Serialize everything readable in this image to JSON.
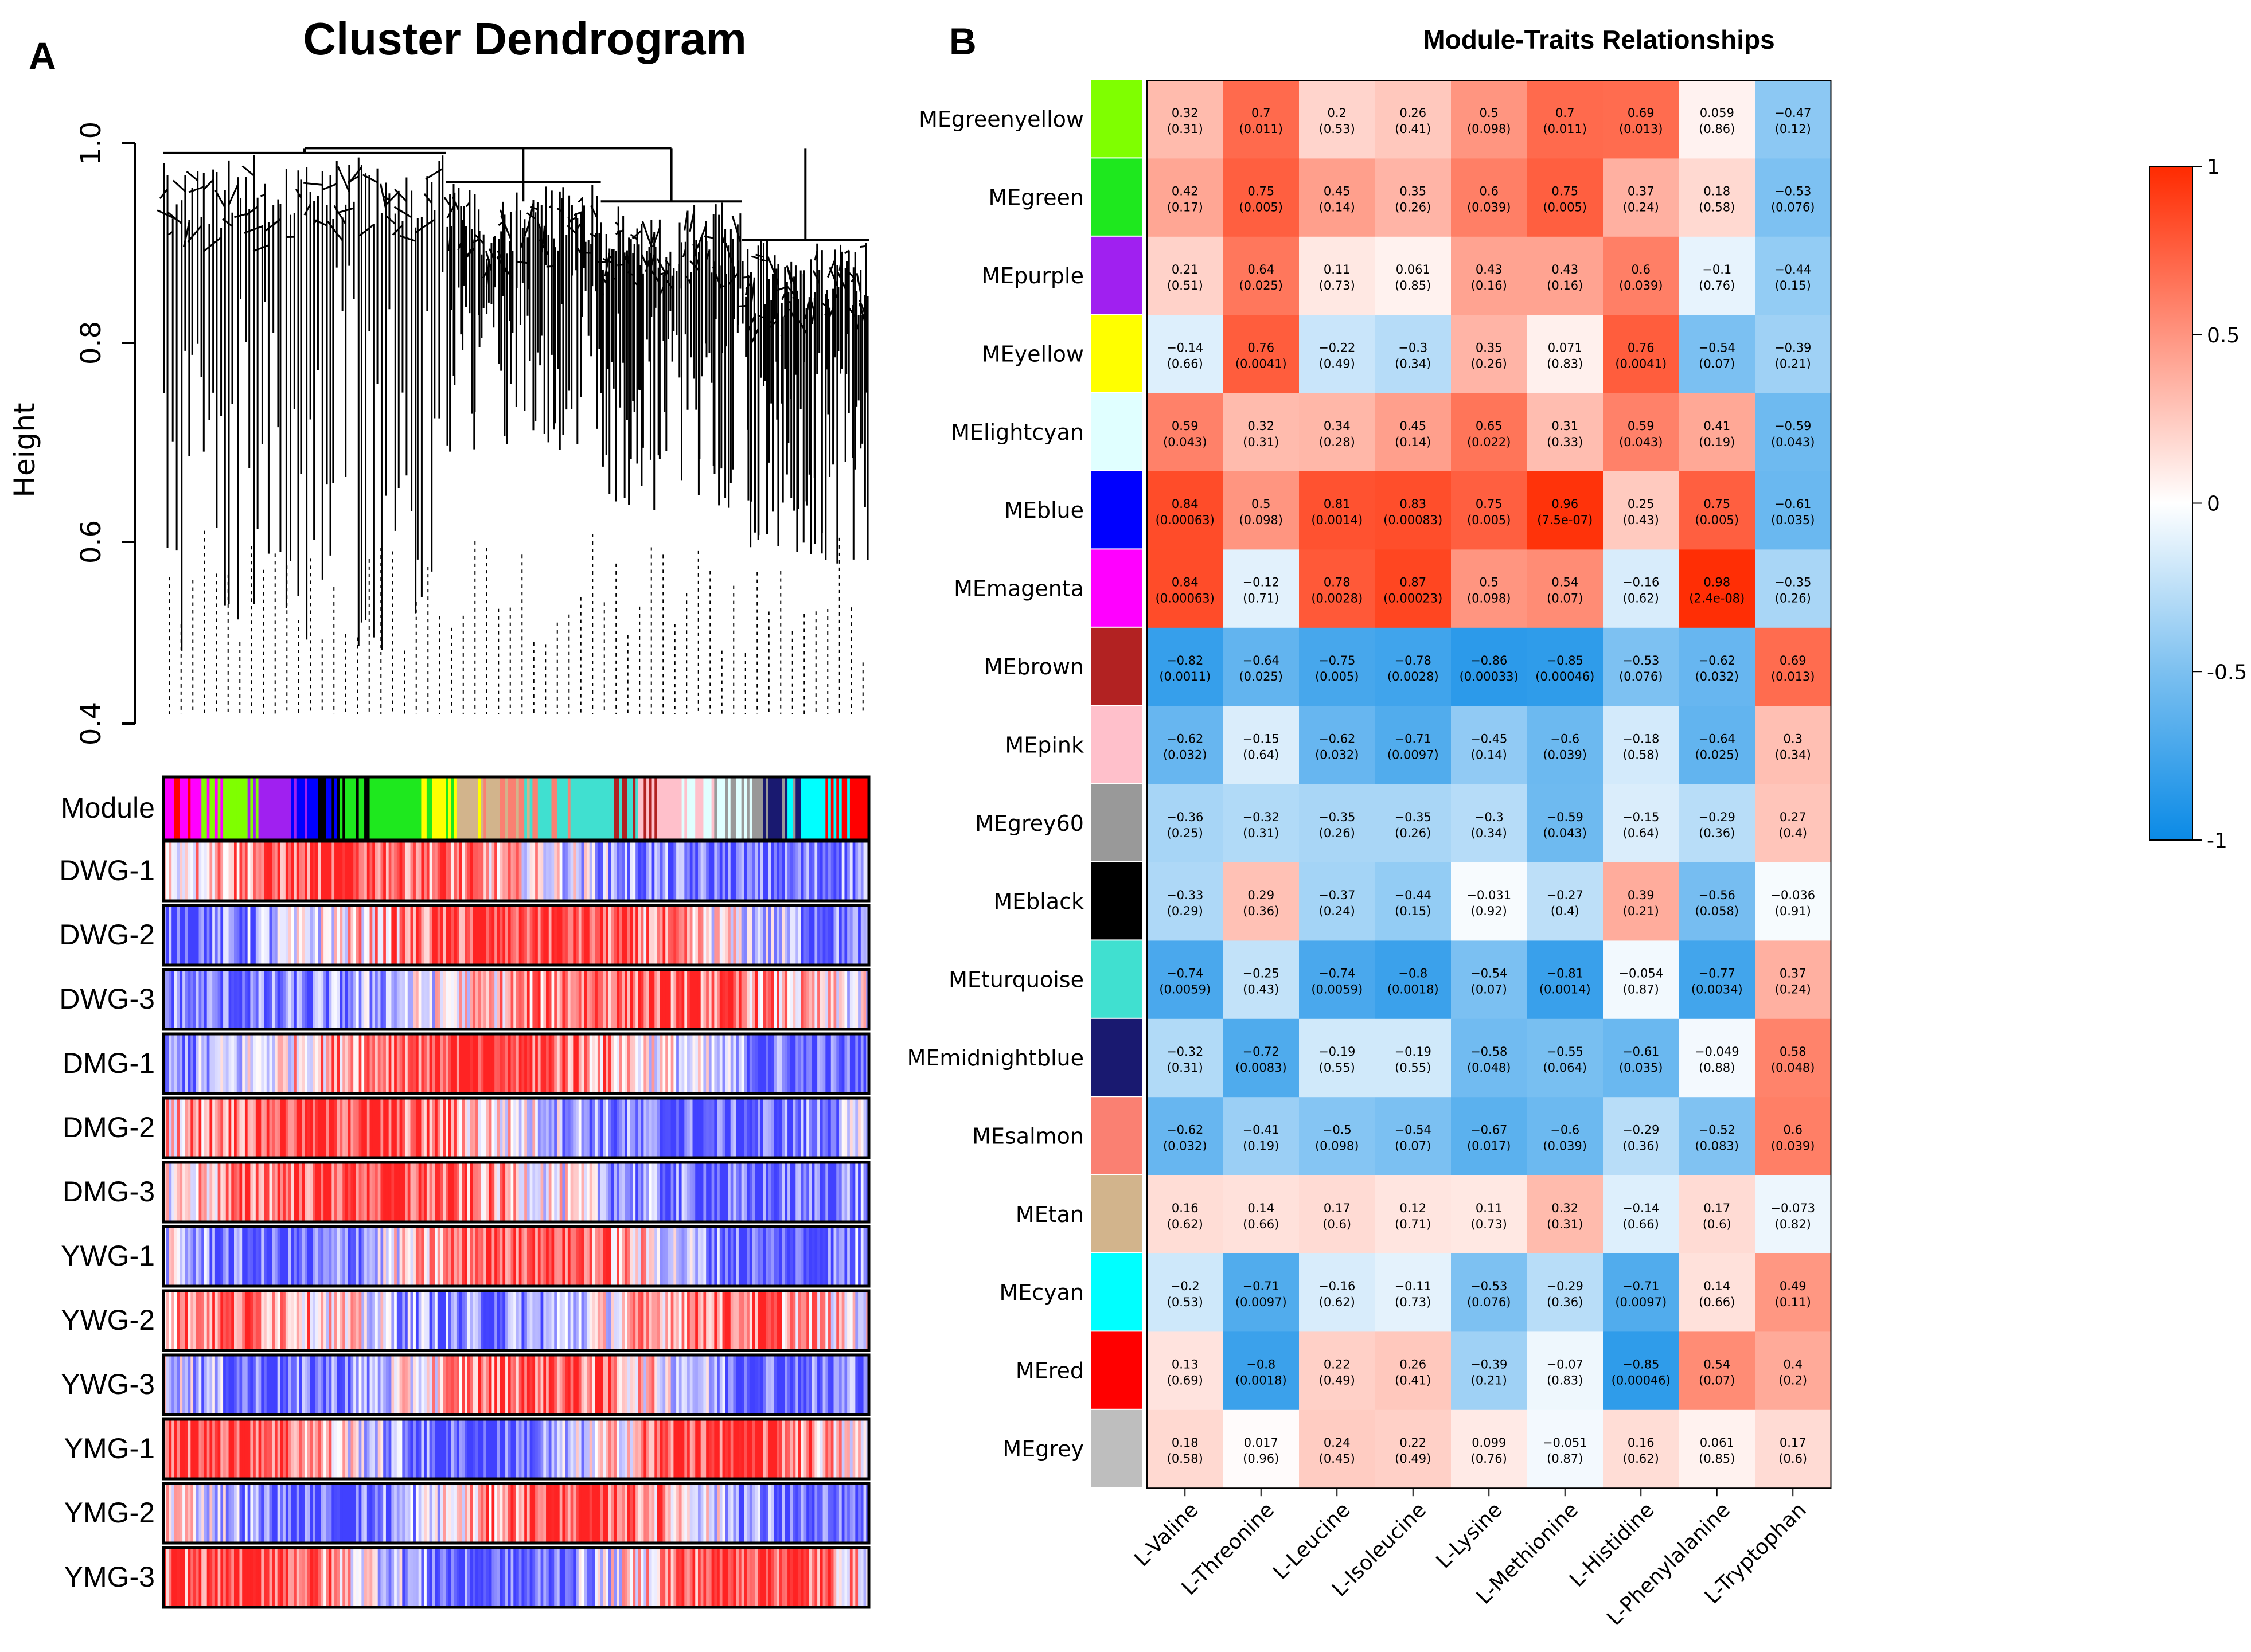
{
  "panel_a": {
    "label": "A",
    "title": "Cluster Dendrogram",
    "y_axis_label": "Height",
    "y_ticks": [
      "0.4",
      "0.6",
      "0.8",
      "1.0"
    ],
    "module_track_label": "Module",
    "samples": [
      "DWG-1",
      "DWG-2",
      "DWG-3",
      "DMG-1",
      "DMG-2",
      "DMG-3",
      "YWG-1",
      "YWG-2",
      "YWG-3",
      "YMG-1",
      "YMG-2",
      "YMG-3"
    ]
  },
  "panel_b": {
    "label": "B",
    "title": "Module-Traits Relationships",
    "colorbar_ticks": [
      "1",
      "0.5",
      "0",
      "-0.5",
      "-1"
    ],
    "colors": {
      "positive": "#ff2a00",
      "neutral": "#ffffff",
      "negative": "#0a8ae6"
    }
  },
  "chart_data": [
    {
      "type": "dendrogram",
      "title": "Cluster Dendrogram",
      "ylabel": "Height",
      "ylim": [
        0.4,
        1.0
      ],
      "tracks": [
        "Module",
        "DWG-1",
        "DWG-2",
        "DWG-3",
        "DMG-1",
        "DMG-2",
        "DMG-3",
        "YWG-1",
        "YWG-2",
        "YWG-3",
        "YMG-1",
        "YMG-2",
        "YMG-3"
      ]
    },
    {
      "type": "heatmap",
      "title": "Module-Traits Relationships",
      "columns": [
        "L-Valine",
        "L-Threonine",
        "L-Leucine",
        "L-Isoleucine",
        "L-Lysine",
        "L-Methionine",
        "L-Histidine",
        "L-Phenylalanine",
        "L-Tryptophan"
      ],
      "zlim": [
        -1,
        1
      ],
      "rows": [
        {
          "name": "MEgreenyellow",
          "color": "#7fff00",
          "values": [
            "0.32",
            "0.7",
            "0.2",
            "0.26",
            "0.5",
            "0.7",
            "0.69",
            "0.059",
            "−0.47"
          ],
          "p": [
            "(0.31)",
            "(0.011)",
            "(0.53)",
            "(0.41)",
            "(0.098)",
            "(0.011)",
            "(0.013)",
            "(0.86)",
            "(0.12)"
          ]
        },
        {
          "name": "MEgreen",
          "color": "#1ee81e",
          "values": [
            "0.42",
            "0.75",
            "0.45",
            "0.35",
            "0.6",
            "0.75",
            "0.37",
            "0.18",
            "−0.53"
          ],
          "p": [
            "(0.17)",
            "(0.005)",
            "(0.14)",
            "(0.26)",
            "(0.039)",
            "(0.005)",
            "(0.24)",
            "(0.58)",
            "(0.076)"
          ]
        },
        {
          "name": "MEpurple",
          "color": "#a020f0",
          "values": [
            "0.21",
            "0.64",
            "0.11",
            "0.061",
            "0.43",
            "0.43",
            "0.6",
            "−0.1",
            "−0.44"
          ],
          "p": [
            "(0.51)",
            "(0.025)",
            "(0.73)",
            "(0.85)",
            "(0.16)",
            "(0.16)",
            "(0.039)",
            "(0.76)",
            "(0.15)"
          ]
        },
        {
          "name": "MEyellow",
          "color": "#ffff00",
          "values": [
            "−0.14",
            "0.76",
            "−0.22",
            "−0.3",
            "0.35",
            "0.071",
            "0.76",
            "−0.54",
            "−0.39"
          ],
          "p": [
            "(0.66)",
            "(0.0041)",
            "(0.49)",
            "(0.34)",
            "(0.26)",
            "(0.83)",
            "(0.0041)",
            "(0.07)",
            "(0.21)"
          ]
        },
        {
          "name": "MElightcyan",
          "color": "#e0ffff",
          "values": [
            "0.59",
            "0.32",
            "0.34",
            "0.45",
            "0.65",
            "0.31",
            "0.59",
            "0.41",
            "−0.59"
          ],
          "p": [
            "(0.043)",
            "(0.31)",
            "(0.28)",
            "(0.14)",
            "(0.022)",
            "(0.33)",
            "(0.043)",
            "(0.19)",
            "(0.043)"
          ]
        },
        {
          "name": "MEblue",
          "color": "#0000ff",
          "values": [
            "0.84",
            "0.5",
            "0.81",
            "0.83",
            "0.75",
            "0.96",
            "0.25",
            "0.75",
            "−0.61"
          ],
          "p": [
            "(0.00063)",
            "(0.098)",
            "(0.0014)",
            "(0.00083)",
            "(0.005)",
            "(7.5e-07)",
            "(0.43)",
            "(0.005)",
            "(0.035)"
          ]
        },
        {
          "name": "MEmagenta",
          "color": "#ff00ff",
          "values": [
            "0.84",
            "−0.12",
            "0.78",
            "0.87",
            "0.5",
            "0.54",
            "−0.16",
            "0.98",
            "−0.35"
          ],
          "p": [
            "(0.00063)",
            "(0.71)",
            "(0.0028)",
            "(0.00023)",
            "(0.098)",
            "(0.07)",
            "(0.62)",
            "(2.4e-08)",
            "(0.26)"
          ]
        },
        {
          "name": "MEbrown",
          "color": "#b22222",
          "values": [
            "−0.82",
            "−0.64",
            "−0.75",
            "−0.78",
            "−0.86",
            "−0.85",
            "−0.53",
            "−0.62",
            "0.69"
          ],
          "p": [
            "(0.0011)",
            "(0.025)",
            "(0.005)",
            "(0.0028)",
            "(0.00033)",
            "(0.00046)",
            "(0.076)",
            "(0.032)",
            "(0.013)"
          ]
        },
        {
          "name": "MEpink",
          "color": "#ffc0cb",
          "values": [
            "−0.62",
            "−0.15",
            "−0.62",
            "−0.71",
            "−0.45",
            "−0.6",
            "−0.18",
            "−0.64",
            "0.3"
          ],
          "p": [
            "(0.032)",
            "(0.64)",
            "(0.032)",
            "(0.0097)",
            "(0.14)",
            "(0.039)",
            "(0.58)",
            "(0.025)",
            "(0.34)"
          ]
        },
        {
          "name": "MEgrey60",
          "color": "#999999",
          "values": [
            "−0.36",
            "−0.32",
            "−0.35",
            "−0.35",
            "−0.3",
            "−0.59",
            "−0.15",
            "−0.29",
            "0.27"
          ],
          "p": [
            "(0.25)",
            "(0.31)",
            "(0.26)",
            "(0.26)",
            "(0.34)",
            "(0.043)",
            "(0.64)",
            "(0.36)",
            "(0.4)"
          ]
        },
        {
          "name": "MEblack",
          "color": "#000000",
          "values": [
            "−0.33",
            "0.29",
            "−0.37",
            "−0.44",
            "−0.031",
            "−0.27",
            "0.39",
            "−0.56",
            "−0.036"
          ],
          "p": [
            "(0.29)",
            "(0.36)",
            "(0.24)",
            "(0.15)",
            "(0.92)",
            "(0.4)",
            "(0.21)",
            "(0.058)",
            "(0.91)"
          ]
        },
        {
          "name": "MEturquoise",
          "color": "#40e0d0",
          "values": [
            "−0.74",
            "−0.25",
            "−0.74",
            "−0.8",
            "−0.54",
            "−0.81",
            "−0.054",
            "−0.77",
            "0.37"
          ],
          "p": [
            "(0.0059)",
            "(0.43)",
            "(0.0059)",
            "(0.0018)",
            "(0.07)",
            "(0.0014)",
            "(0.87)",
            "(0.0034)",
            "(0.24)"
          ]
        },
        {
          "name": "MEmidnightblue",
          "color": "#191970",
          "values": [
            "−0.32",
            "−0.72",
            "−0.19",
            "−0.19",
            "−0.58",
            "−0.55",
            "−0.61",
            "−0.049",
            "0.58"
          ],
          "p": [
            "(0.31)",
            "(0.0083)",
            "(0.55)",
            "(0.55)",
            "(0.048)",
            "(0.064)",
            "(0.035)",
            "(0.88)",
            "(0.048)"
          ]
        },
        {
          "name": "MEsalmon",
          "color": "#fa8072",
          "values": [
            "−0.62",
            "−0.41",
            "−0.5",
            "−0.54",
            "−0.67",
            "−0.6",
            "−0.29",
            "−0.52",
            "0.6"
          ],
          "p": [
            "(0.032)",
            "(0.19)",
            "(0.098)",
            "(0.07)",
            "(0.017)",
            "(0.039)",
            "(0.36)",
            "(0.083)",
            "(0.039)"
          ]
        },
        {
          "name": "MEtan",
          "color": "#d2b48c",
          "values": [
            "0.16",
            "0.14",
            "0.17",
            "0.12",
            "0.11",
            "0.32",
            "−0.14",
            "0.17",
            "−0.073"
          ],
          "p": [
            "(0.62)",
            "(0.66)",
            "(0.6)",
            "(0.71)",
            "(0.73)",
            "(0.31)",
            "(0.66)",
            "(0.6)",
            "(0.82)"
          ]
        },
        {
          "name": "MEcyan",
          "color": "#00ffff",
          "values": [
            "−0.2",
            "−0.71",
            "−0.16",
            "−0.11",
            "−0.53",
            "−0.29",
            "−0.71",
            "0.14",
            "0.49"
          ],
          "p": [
            "(0.53)",
            "(0.0097)",
            "(0.62)",
            "(0.73)",
            "(0.076)",
            "(0.36)",
            "(0.0097)",
            "(0.66)",
            "(0.11)"
          ]
        },
        {
          "name": "MEred",
          "color": "#ff0000",
          "values": [
            "0.13",
            "−0.8",
            "0.22",
            "0.26",
            "−0.39",
            "−0.07",
            "−0.85",
            "0.54",
            "0.4"
          ],
          "p": [
            "(0.69)",
            "(0.0018)",
            "(0.49)",
            "(0.41)",
            "(0.21)",
            "(0.83)",
            "(0.00046)",
            "(0.07)",
            "(0.2)"
          ]
        },
        {
          "name": "MEgrey",
          "color": "#bebebe",
          "values": [
            "0.18",
            "0.017",
            "0.24",
            "0.22",
            "0.099",
            "−0.051",
            "0.16",
            "0.061",
            "0.17"
          ],
          "p": [
            "(0.58)",
            "(0.96)",
            "(0.45)",
            "(0.49)",
            "(0.76)",
            "(0.87)",
            "(0.62)",
            "(0.85)",
            "(0.6)"
          ]
        }
      ]
    }
  ]
}
